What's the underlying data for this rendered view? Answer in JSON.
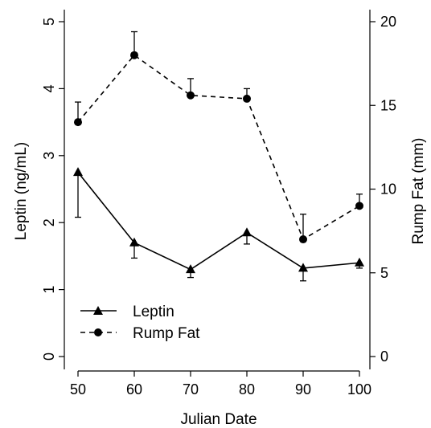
{
  "chart_data": {
    "type": "line",
    "x": [
      50,
      60,
      70,
      80,
      90,
      100
    ],
    "xlabel": "Julian Date",
    "xlim": [
      50,
      100
    ],
    "xticks": [
      50,
      60,
      70,
      80,
      90,
      100
    ],
    "ylabel_left": "Leptin (ng/mL)",
    "ylim_left": [
      0,
      5
    ],
    "yticks_left": [
      0,
      1,
      2,
      3,
      4,
      5
    ],
    "ylabel_right": "Rump Fat (mm)",
    "ylim_right": [
      0,
      20
    ],
    "yticks_right": [
      0,
      5,
      10,
      15,
      20
    ],
    "legend_position": "bottom-left",
    "grid": false,
    "series": [
      {
        "name": "Leptin",
        "axis": "left",
        "marker": "triangle",
        "line_style": "solid",
        "values": [
          2.75,
          1.7,
          1.3,
          1.85,
          1.32,
          1.4
        ],
        "error_low": [
          2.08,
          1.47,
          1.18,
          1.68,
          1.13,
          1.32
        ],
        "error_high": [
          2.75,
          1.7,
          1.3,
          1.85,
          1.32,
          1.4
        ]
      },
      {
        "name": "Rump Fat",
        "axis": "right",
        "marker": "circle",
        "line_style": "dashed",
        "values": [
          14.0,
          18.0,
          15.6,
          15.4,
          7.0,
          9.0
        ],
        "error_low": [
          14.0,
          18.0,
          15.6,
          15.4,
          7.0,
          9.0
        ],
        "error_high": [
          15.2,
          19.4,
          16.6,
          16.0,
          8.5,
          9.7
        ]
      }
    ]
  }
}
